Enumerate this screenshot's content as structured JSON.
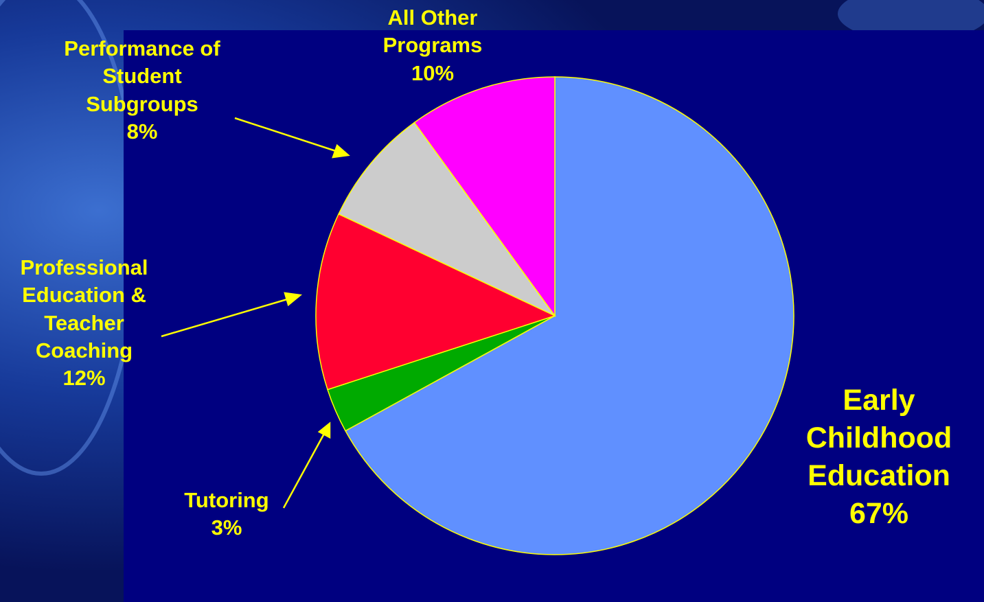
{
  "chart_data": {
    "type": "pie",
    "start_angle_deg": 0,
    "direction": "clockwise",
    "slices": [
      {
        "label": "Early Childhood Education",
        "display": "Early\nChildhood\nEducation\n67%",
        "value": 67,
        "color": "#6090ff"
      },
      {
        "label": "Tutoring",
        "display": "Tutoring\n3%",
        "value": 3,
        "color": "#00aa00"
      },
      {
        "label": "Professional Education & Teacher Coaching",
        "display": "Professional\nEducation &\nTeacher\nCoaching\n12%",
        "value": 12,
        "color": "#ff0030"
      },
      {
        "label": "Performance of Student Subgroups",
        "display": "Performance of\nStudent\nSubgroups\n8%",
        "value": 8,
        "color": "#cccccc"
      },
      {
        "label": "All Other Programs",
        "display": "All Other\nPrograms\n10%",
        "value": 10,
        "color": "#ff00ff"
      }
    ],
    "slice_border_color": "#ffff00",
    "label_color": "#ffff00"
  },
  "colors": {
    "panel_background": "#000080",
    "slide_background": "#0b1e6b"
  }
}
